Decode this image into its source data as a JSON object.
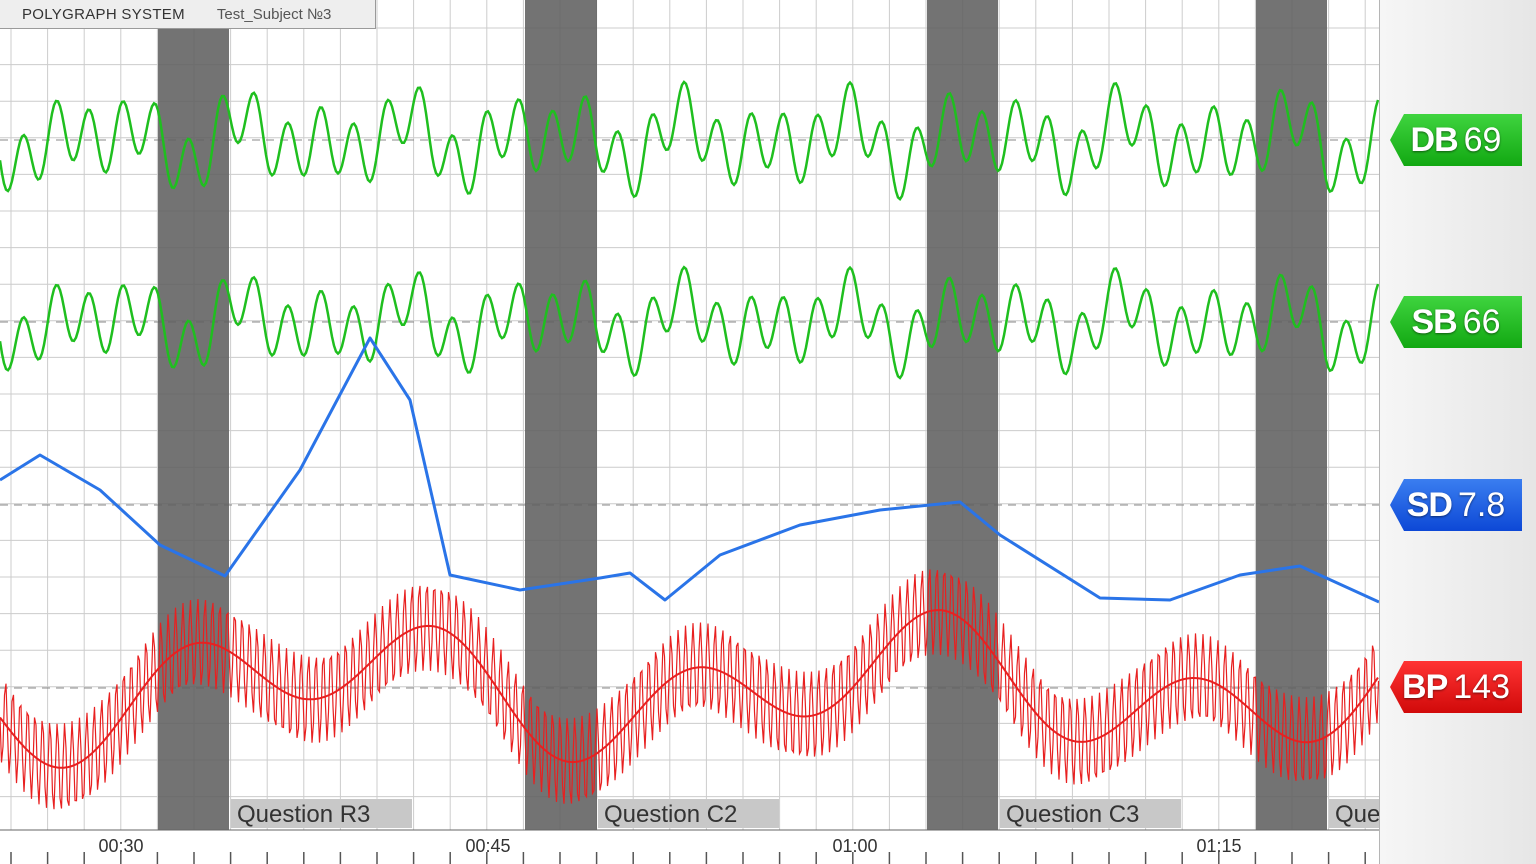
{
  "header": {
    "app_name": "POLYGRAPH SYSTEM",
    "subject": "Test_Subject №3"
  },
  "channels": [
    {
      "id": "db",
      "label": "DB",
      "value": "69",
      "color": "#1fbf1f"
    },
    {
      "id": "sb",
      "label": "SB",
      "value": "66",
      "color": "#1fbf1f"
    },
    {
      "id": "sd",
      "label": "SD",
      "value": "7.8",
      "color": "#2a74e8"
    },
    {
      "id": "bp",
      "label": "BP",
      "value": "143",
      "color": "#e82020"
    }
  ],
  "timeline": {
    "ticks": [
      "00:30",
      "00:45",
      "01:00",
      "01:15"
    ]
  },
  "questions": [
    "Question R3",
    "Question C2",
    "Question C3",
    "Que"
  ],
  "colors": {
    "marker": "#606060",
    "grid": "#cccccc",
    "question_label_bg": "#c8c8c8"
  }
}
